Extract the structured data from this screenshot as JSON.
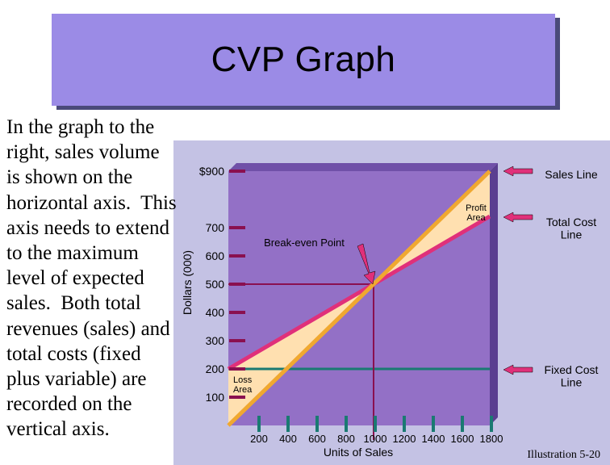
{
  "slide": {
    "title": "CVP Graph",
    "body_text": "In the graph to the\nright, sales volume\nis shown on the\nhorizontal axis.  This\naxis needs to extend\nto the maximum\nlevel of expected\nsales.  Both total\nrevenues (sales) and\ntotal costs (fixed\nplus variable) are\nrecorded on the\nvertical axis.",
    "footer": "Illustration 5-20"
  },
  "colors": {
    "title_box": "#9b8be6",
    "plot_face": "#9370c6",
    "sales_line": "#f0a830",
    "total_cost_line": "#e0307a",
    "fixed_cost_line": "#1a7a72",
    "profit_area": "#ffe0b0",
    "loss_area": "#ffe0b0",
    "marker": "#8a1050",
    "callout_arrow": "#e0307a"
  },
  "chart_data": {
    "type": "line",
    "xlabel": "Units of Sales",
    "ylabel": "Dollars (000)",
    "x_ticks": [
      200,
      400,
      600,
      800,
      1000,
      1200,
      1400,
      1600,
      1800
    ],
    "x_tick_labels": [
      "200",
      "400",
      "600",
      "800",
      "1000",
      "1200",
      "1400",
      "1600",
      "1800"
    ],
    "y_ticks": [
      100,
      200,
      300,
      400,
      500,
      600,
      700,
      900
    ],
    "y_tick_labels": [
      "100",
      "200",
      "300",
      "400",
      "500",
      "600",
      "700",
      "$900"
    ],
    "xlim": [
      0,
      1800
    ],
    "ylim": [
      0,
      900
    ],
    "series": [
      {
        "name": "Sales Line",
        "x": [
          0,
          1800
        ],
        "y": [
          0,
          900
        ]
      },
      {
        "name": "Total Cost Line",
        "x": [
          0,
          1800
        ],
        "y": [
          200,
          740
        ]
      },
      {
        "name": "Fixed Cost Line",
        "x": [
          0,
          1800
        ],
        "y": [
          200,
          200
        ]
      }
    ],
    "break_even": {
      "x": 1000,
      "y": 500
    },
    "annotations": {
      "break_even": "Break-even Point",
      "profit": "Profit\nArea",
      "loss": "Loss\nArea"
    },
    "legend": [
      "Sales Line",
      "Total Cost\nLine",
      "Fixed Cost\nLine"
    ]
  }
}
